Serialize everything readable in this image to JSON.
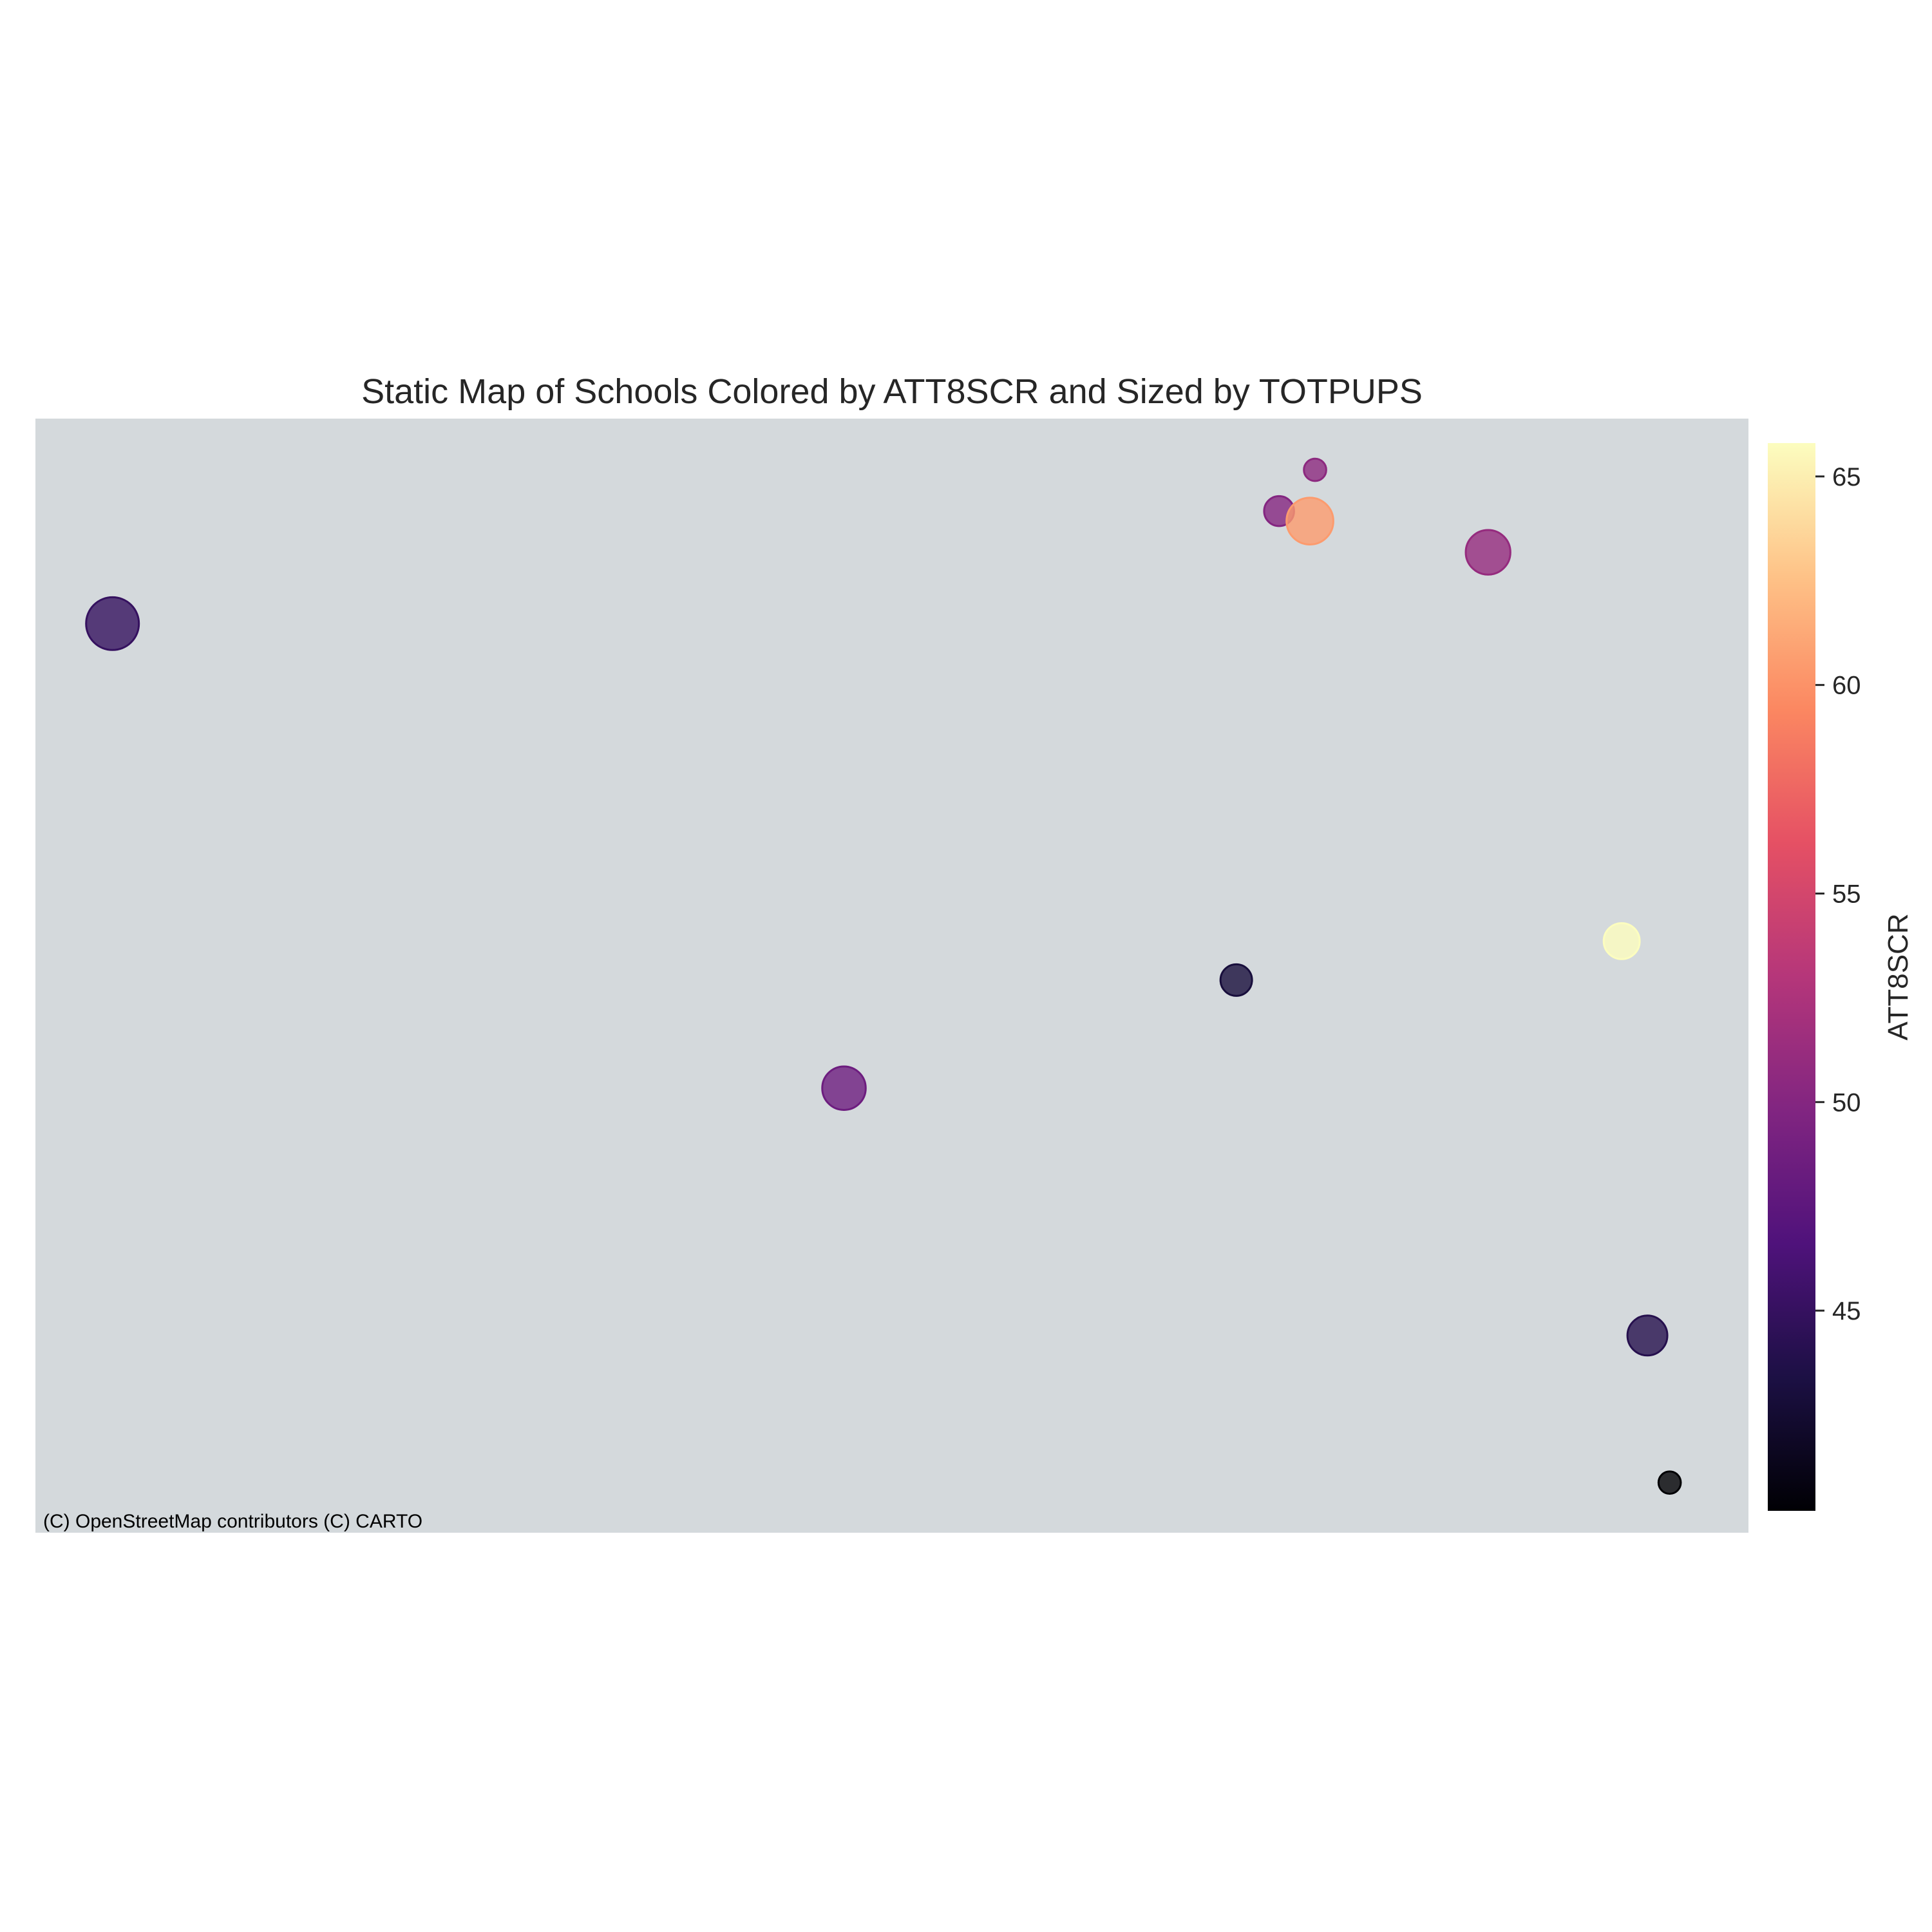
{
  "chart_data": {
    "type": "scatter",
    "title": "Static Map of Schools Colored by ATT8SCR and Sized by TOTPUPS",
    "color_variable": "ATT8SCR",
    "size_variable": "TOTPUPS",
    "colormap": "magma",
    "basemap_attribution": "(C) OpenStreetMap contributors (C) CARTO",
    "basemap_color": "#d4d9dc",
    "colorbar": {
      "label": "ATT8SCR",
      "range": [
        40.2,
        65.8
      ],
      "ticks": [
        45,
        50,
        55,
        60,
        65
      ],
      "tick_labels": [
        "45",
        "50",
        "55",
        "60",
        "65"
      ]
    },
    "points": [
      {
        "x": 0.045,
        "y": 0.184,
        "att8scr": 45.0,
        "totpups": 1400
      },
      {
        "x": 0.747,
        "y": 0.046,
        "att8scr": 50.5,
        "totpups": 250
      },
      {
        "x": 0.726,
        "y": 0.083,
        "att8scr": 50.0,
        "totpups": 450
      },
      {
        "x": 0.744,
        "y": 0.092,
        "att8scr": 60.5,
        "totpups": 1100
      },
      {
        "x": 0.848,
        "y": 0.12,
        "att8scr": 51.0,
        "totpups": 1000
      },
      {
        "x": 0.926,
        "y": 0.469,
        "att8scr": 65.8,
        "totpups": 650
      },
      {
        "x": 0.701,
        "y": 0.504,
        "att8scr": 43.0,
        "totpups": 500
      },
      {
        "x": 0.472,
        "y": 0.601,
        "att8scr": 48.5,
        "totpups": 950
      },
      {
        "x": 0.941,
        "y": 0.823,
        "att8scr": 44.0,
        "totpups": 800
      },
      {
        "x": 0.954,
        "y": 0.955,
        "att8scr": 40.2,
        "totpups": 250
      }
    ]
  }
}
